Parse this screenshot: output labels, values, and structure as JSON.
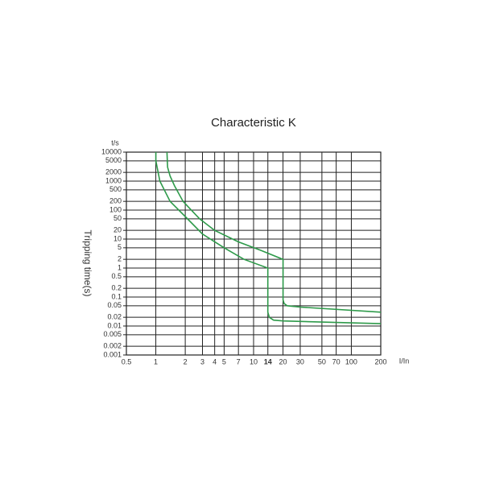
{
  "chart_data": {
    "type": "line",
    "title": "Characteristic K",
    "y_unit_label": "t/s",
    "y_axis_label": "Tripping time(s)",
    "x_unit_label": "I/In",
    "xscale": "log",
    "yscale": "log",
    "grid": true,
    "xlim": [
      0.5,
      200
    ],
    "ylim": [
      0.001,
      10000
    ],
    "xticks": [
      0.5,
      1,
      2,
      3,
      4,
      5,
      7,
      10,
      14,
      20,
      30,
      50,
      70,
      100,
      200
    ],
    "highlight_xtick": 14,
    "yticks": [
      10000,
      5000,
      2000,
      1000,
      500,
      200,
      100,
      50,
      20,
      10,
      5,
      2,
      1,
      0.5,
      0.2,
      0.1,
      0.05,
      0.02,
      0.01,
      0.005,
      0.002,
      0.001
    ],
    "series": [
      {
        "color": "#2e9a4a",
        "x": [
          1.3,
          1.32,
          1.4,
          1.55,
          1.9,
          2.8,
          4,
          7,
          12,
          20,
          20,
          20.5,
          22,
          30,
          200
        ],
        "values": [
          10000,
          3000,
          1500,
          700,
          200,
          50,
          20,
          8,
          4,
          2,
          0.08,
          0.06,
          0.05,
          0.045,
          0.03
        ]
      },
      {
        "color": "#2e9a4a",
        "x": [
          1,
          1,
          1.1,
          1.4,
          2,
          3,
          5,
          8,
          14,
          14,
          14.5,
          16,
          20,
          200
        ],
        "values": [
          10000,
          5000,
          1000,
          200,
          60,
          15,
          5,
          2,
          1,
          0.03,
          0.02,
          0.016,
          0.015,
          0.012
        ]
      }
    ]
  }
}
